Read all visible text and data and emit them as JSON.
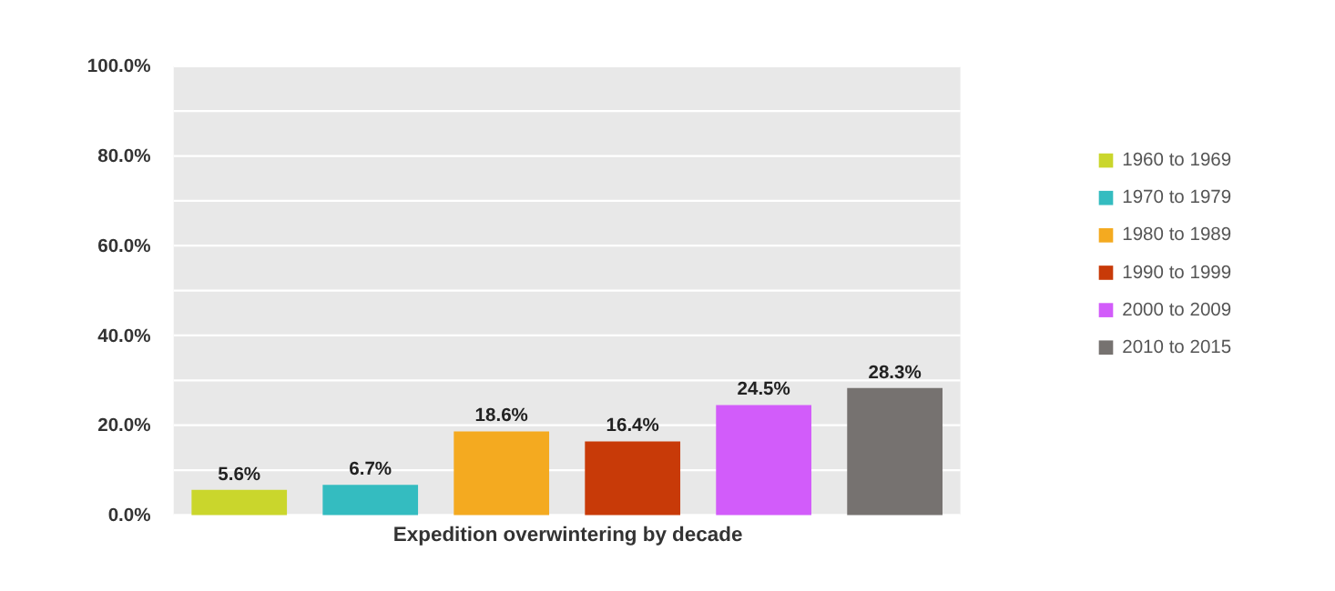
{
  "chart_data": {
    "type": "bar",
    "xlabel": "Expedition overwintering by decade",
    "categories": [
      null,
      null,
      null,
      null,
      null,
      null
    ],
    "series": [
      {
        "name": "1960 to 1969",
        "color": "#cad62c",
        "values": [
          5.6,
          null,
          null,
          null,
          null,
          null
        ],
        "value_labels": [
          "5.6%",
          null,
          null,
          null,
          null,
          null
        ]
      },
      {
        "name": "1970 to 1979",
        "color": "#34bcc0",
        "values": [
          null,
          6.7,
          null,
          null,
          null,
          null
        ],
        "value_labels": [
          null,
          "6.7%",
          null,
          null,
          null,
          null
        ]
      },
      {
        "name": "1980 to 1989",
        "color": "#f4aa20",
        "values": [
          null,
          null,
          18.6,
          null,
          null,
          null
        ],
        "value_labels": [
          null,
          null,
          "18.6%",
          null,
          null,
          null
        ]
      },
      {
        "name": "1990 to 1999",
        "color": "#c83a08",
        "values": [
          null,
          null,
          null,
          16.4,
          null,
          null
        ],
        "value_labels": [
          null,
          null,
          null,
          "16.4%",
          null,
          null
        ]
      },
      {
        "name": "2000 to 2009",
        "color": "#d25cfa",
        "values": [
          null,
          null,
          null,
          null,
          24.5,
          null
        ],
        "value_labels": [
          null,
          null,
          null,
          null,
          "24.5%",
          null
        ]
      },
      {
        "name": "2010 to 2015",
        "color": "#767270",
        "values": [
          null,
          null,
          null,
          null,
          null,
          28.3
        ],
        "value_labels": [
          null,
          null,
          null,
          null,
          null,
          "28.3%"
        ]
      }
    ],
    "ylim": [
      0,
      100
    ],
    "yticks": [
      {
        "value": 0,
        "label": "0.0%"
      },
      {
        "value": 10,
        "label": null
      },
      {
        "value": 20,
        "label": "20.0%"
      },
      {
        "value": 30,
        "label": null
      },
      {
        "value": 40,
        "label": "40.0%"
      },
      {
        "value": 50,
        "label": null
      },
      {
        "value": 60,
        "label": "60.0%"
      },
      {
        "value": 70,
        "label": null
      },
      {
        "value": 80,
        "label": "80.0%"
      },
      {
        "value": 90,
        "label": null
      },
      {
        "value": 100,
        "label": "100.0%"
      }
    ],
    "grid": "y",
    "legend": "right",
    "tick_labels": "y"
  }
}
